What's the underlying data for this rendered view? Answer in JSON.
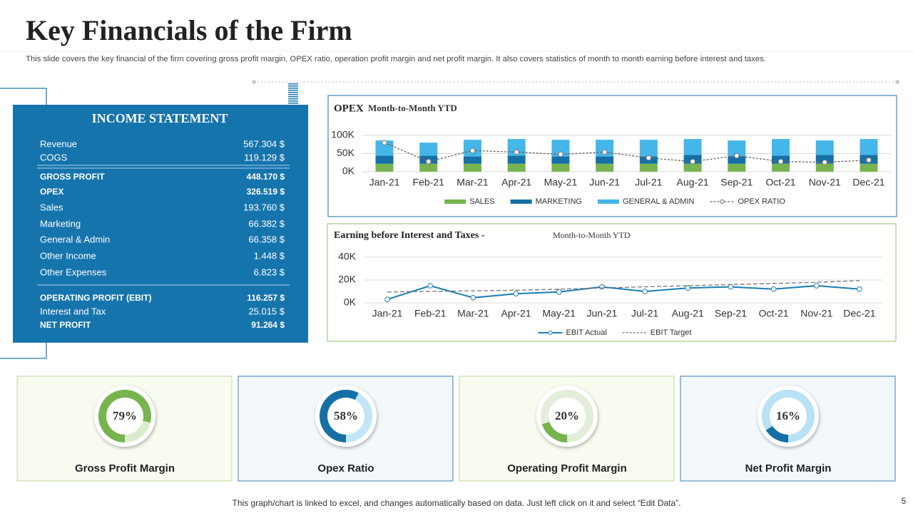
{
  "header": {
    "title": "Key Financials of the Firm",
    "subtitle": "This slide covers the key financial of the firm covering gross profit margin, OPEX ratio, operation profit margin and net profit margin. It also covers statistics of month to month earning before interest and taxes."
  },
  "income_statement": {
    "title": "INCOME STATEMENT",
    "groups": [
      [
        {
          "label": "Revenue",
          "value": "567.304 $",
          "bold": false
        },
        {
          "label": "COGS",
          "value": "119.129 $",
          "bold": false
        }
      ],
      [
        {
          "label": "GROSS PROFIT",
          "value": "448.170 $",
          "bold": true
        },
        {
          "label": "OPEX",
          "value": "326.519 $",
          "bold": true
        },
        {
          "label": "Sales",
          "value": "193.760  $",
          "bold": false
        },
        {
          "label": "Marketing",
          "value": "66.382  $",
          "bold": false
        },
        {
          "label": "General & Admin",
          "value": "66.358  $",
          "bold": false
        },
        {
          "label": "Other Income",
          "value": "1.448  $",
          "bold": false
        },
        {
          "label": "Other Expenses",
          "value": "6.823  $",
          "bold": false
        }
      ],
      [
        {
          "label": "OPERATING  PROFIT (EBIT)",
          "value": "116.257 $",
          "bold": true
        },
        {
          "label": "Interest and Tax",
          "value": "25.015 $",
          "bold": false
        },
        {
          "label": "NET PROFIT",
          "value": "91.264 $",
          "bold": true
        }
      ]
    ]
  },
  "chart_data": [
    {
      "type": "bar",
      "stacked": true,
      "title": "OPEX",
      "subtitle": "Month-to-Month  YTD",
      "border": "#1f6fa8",
      "categories": [
        "Jan-21",
        "Feb-21",
        "Mar-21",
        "Apr-21",
        "May-21",
        "Jun-21",
        "Jul-21",
        "Aug-21",
        "Sep-21",
        "Oct-21",
        "Nov-21",
        "Dec-21"
      ],
      "ylim": [
        0,
        100000
      ],
      "yticks": [
        {
          "value": 0,
          "label": "0K"
        },
        {
          "value": 50000,
          "label": "50K"
        },
        {
          "value": 100000,
          "label": "100K"
        }
      ],
      "y2lim": [
        0,
        100
      ],
      "grid": true,
      "series": [
        {
          "name": "SALES",
          "color": "#77b450",
          "values": [
            22000,
            22000,
            22000,
            22000,
            22000,
            22000,
            22000,
            22000,
            22000,
            22000,
            22000,
            22000
          ]
        },
        {
          "name": "MARKETING",
          "color": "#1570a6",
          "values": [
            22000,
            22000,
            20000,
            22000,
            20000,
            20000,
            20000,
            24000,
            20000,
            22000,
            24000,
            24000
          ]
        },
        {
          "name": "GENERAL & ADMIN",
          "color": "#45b6ea",
          "values": [
            42000,
            36000,
            46000,
            46000,
            46000,
            46000,
            46000,
            44000,
            44000,
            46000,
            40000,
            44000
          ]
        },
        {
          "name": "OPEX  RATIO",
          "color": "#666666",
          "kind": "line",
          "dashed": true,
          "axis": "y2",
          "values": [
            80,
            28,
            58,
            54,
            48,
            54,
            38,
            28,
            44,
            28,
            26,
            32
          ]
        }
      ]
    },
    {
      "type": "line",
      "title": "Earning before Interest and Taxes -",
      "subtitle": "Month-to-Month YTD",
      "border": "#8dc26a",
      "categories": [
        "Jan-21",
        "Feb-21",
        "Mar-21",
        "Apr-21",
        "May-21",
        "Jun-21",
        "Jul-21",
        "Aug-21",
        "Sep-21",
        "Oct-21",
        "Nov-21",
        "Dec-21"
      ],
      "ylim": [
        0,
        40000
      ],
      "yticks": [
        {
          "value": 0,
          "label": "0K"
        },
        {
          "value": 20000,
          "label": "20K"
        },
        {
          "value": 40000,
          "label": "40K"
        }
      ],
      "grid": true,
      "series": [
        {
          "name": "EBIT Actual",
          "color": "#1a7db5",
          "dashed": false,
          "markers": true,
          "values": [
            3000,
            15000,
            4500,
            8000,
            9500,
            14000,
            10000,
            13000,
            14000,
            12000,
            15000,
            12000
          ]
        },
        {
          "name": "EBIT Target",
          "color": "#777777",
          "dashed": true,
          "markers": false,
          "values": [
            9500,
            10000,
            10500,
            11000,
            12000,
            13000,
            14000,
            15000,
            16000,
            17000,
            18000,
            19500
          ]
        }
      ]
    },
    {
      "type": "donut",
      "title": "Gross Profit Margin",
      "values": [
        79
      ],
      "value_labels": [
        "79%"
      ],
      "color": "#77b450",
      "track_color": "#d9eccb",
      "background": "#f7fbf0",
      "border": "#bcd99f"
    },
    {
      "type": "donut",
      "title": "Opex Ratio",
      "values": [
        58
      ],
      "value_labels": [
        "58%"
      ],
      "color": "#1570a6",
      "track_color": "#c2e5f8",
      "background": "#f3f8fd",
      "border": "#3a7fb8"
    },
    {
      "type": "donut",
      "title": "Operating Profit Margin",
      "values": [
        20
      ],
      "value_labels": [
        "20%"
      ],
      "color": "#77b450",
      "track_color": "#e2eed9",
      "background": "#f7fbf0",
      "border": "#bcd99f"
    },
    {
      "type": "donut",
      "title": "Net Profit Margin",
      "values": [
        16
      ],
      "value_labels": [
        "16%"
      ],
      "color": "#1570a6",
      "track_color": "#b9e2f7",
      "background": "#f3f8fd",
      "border": "#3a7fb8"
    }
  ],
  "footer": "This graph/chart is linked to excel,  and changes automatically based on data. Just left click on it and select “Edit Data”.",
  "page_number": "5"
}
